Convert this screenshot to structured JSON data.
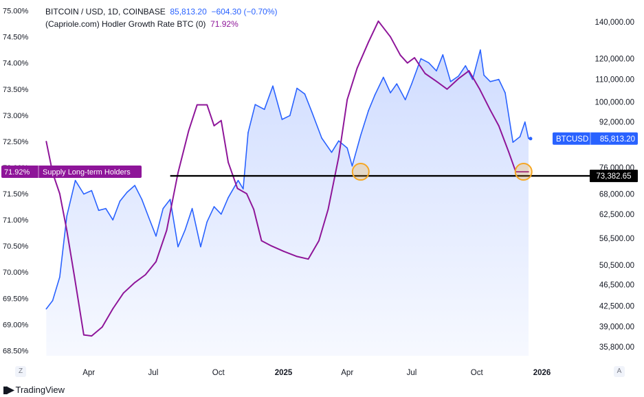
{
  "header": {
    "symbol": "BITCOIN / USD, 1D, COINBASE",
    "price": "85,813.20",
    "change": "−604.30 (−0.70%)",
    "indicator": "(Capriole.com) Hodler Growth Rate BTC (0)",
    "indicator_value": "71.92%"
  },
  "footer": {
    "brand": "TradingView"
  },
  "corner_buttons": {
    "left": "Z",
    "right": "A"
  },
  "chart_data": {
    "type": "line",
    "x_labels": [
      "Apr",
      "Jul",
      "Oct",
      "2025",
      "Apr",
      "Jul",
      "Oct",
      "2026"
    ],
    "left_axis": {
      "ticks": [
        "75.00%",
        "74.50%",
        "74.00%",
        "73.50%",
        "73.00%",
        "72.50%",
        "72.00%",
        "71.50%",
        "71.00%",
        "70.50%",
        "70.00%",
        "69.50%",
        "69.00%",
        "68.50%"
      ],
      "ylim": [
        68.4,
        75.1
      ]
    },
    "right_axis": {
      "scale": "log",
      "ticks": [
        "140,000.00",
        "120,000.00",
        "110,000.00",
        "100,000.00",
        "92,000.00",
        "76,000.00",
        "68,000.00",
        "62,500.00",
        "56,500.00",
        "50,500.00",
        "46,500.00",
        "42,500.00",
        "39,000.00",
        "35,800.00"
      ],
      "ylim": [
        34500,
        150000
      ]
    },
    "series": [
      {
        "name": "BTCUSD",
        "axis": "right",
        "color": "#2962ff",
        "x": [
          "2024-02-01",
          "2024-02-10",
          "2024-02-20",
          "2024-03-01",
          "2024-03-13",
          "2024-03-25",
          "2024-04-05",
          "2024-04-15",
          "2024-04-25",
          "2024-05-05",
          "2024-05-15",
          "2024-05-25",
          "2024-06-05",
          "2024-06-15",
          "2024-06-25",
          "2024-07-05",
          "2024-07-15",
          "2024-07-25",
          "2024-08-05",
          "2024-08-15",
          "2024-08-25",
          "2024-09-06",
          "2024-09-15",
          "2024-09-25",
          "2024-10-05",
          "2024-10-15",
          "2024-10-29",
          "2024-11-05",
          "2024-11-12",
          "2024-11-22",
          "2024-12-05",
          "2024-12-17",
          "2024-12-30",
          "2025-01-10",
          "2025-01-20",
          "2025-01-31",
          "2025-02-10",
          "2025-02-24",
          "2025-03-10",
          "2025-03-20",
          "2025-04-01",
          "2025-04-08",
          "2025-04-20",
          "2025-05-01",
          "2025-05-10",
          "2025-05-22",
          "2025-06-01",
          "2025-06-10",
          "2025-06-22",
          "2025-07-01",
          "2025-07-14",
          "2025-07-25",
          "2025-08-05",
          "2025-08-14",
          "2025-08-25",
          "2025-09-05",
          "2025-09-15",
          "2025-09-25",
          "2025-10-06",
          "2025-10-11",
          "2025-10-20",
          "2025-11-01",
          "2025-11-10",
          "2025-11-21",
          "2025-12-01",
          "2025-12-08",
          "2025-12-13"
        ],
        "values": [
          42000,
          43500,
          48000,
          62000,
          72000,
          68000,
          69000,
          63500,
          64000,
          61000,
          66000,
          68500,
          70500,
          66500,
          61500,
          57000,
          64000,
          66500,
          54500,
          58500,
          64000,
          54500,
          60500,
          64500,
          62500,
          67000,
          72000,
          69500,
          88000,
          99000,
          97000,
          107000,
          93000,
          94500,
          106000,
          103500,
          96000,
          86000,
          81000,
          85000,
          82500,
          76500,
          87000,
          96500,
          103000,
          111000,
          104000,
          108000,
          101000,
          108000,
          120000,
          118000,
          114000,
          122000,
          109000,
          111500,
          116500,
          110000,
          124500,
          112000,
          109000,
          110000,
          104000,
          84500,
          86500,
          92000,
          85813
        ]
      },
      {
        "name": "Supply Long-term Holders",
        "axis": "left",
        "color": "#8e1599",
        "x": [
          "2024-02-01",
          "2024-02-10",
          "2024-02-20",
          "2024-03-01",
          "2024-03-12",
          "2024-03-25",
          "2024-04-05",
          "2024-04-20",
          "2024-05-05",
          "2024-05-20",
          "2024-06-05",
          "2024-06-20",
          "2024-07-05",
          "2024-07-20",
          "2024-08-05",
          "2024-08-20",
          "2024-09-01",
          "2024-09-15",
          "2024-09-25",
          "2024-10-05",
          "2024-10-15",
          "2024-10-28",
          "2024-11-10",
          "2024-11-20",
          "2024-12-01",
          "2024-12-15",
          "2025-01-01",
          "2025-01-20",
          "2025-02-05",
          "2025-02-20",
          "2025-03-05",
          "2025-03-20",
          "2025-04-01",
          "2025-04-15",
          "2025-05-01",
          "2025-05-15",
          "2025-06-01",
          "2025-06-15",
          "2025-06-25",
          "2025-07-05",
          "2025-07-20",
          "2025-08-05",
          "2025-08-20",
          "2025-09-05",
          "2025-09-20",
          "2025-10-05",
          "2025-10-20",
          "2025-11-01",
          "2025-11-15",
          "2025-11-25",
          "2025-12-05",
          "2025-12-13"
        ],
        "values": [
          72.5,
          71.9,
          71.5,
          70.8,
          69.9,
          68.8,
          68.78,
          68.95,
          69.3,
          69.6,
          69.8,
          69.95,
          70.2,
          70.8,
          71.9,
          72.7,
          73.2,
          73.2,
          72.8,
          72.9,
          72.1,
          71.6,
          71.5,
          71.2,
          70.6,
          70.5,
          70.4,
          70.3,
          70.25,
          70.6,
          71.2,
          72.2,
          73.3,
          73.9,
          74.4,
          74.8,
          74.5,
          74.15,
          74.0,
          74.1,
          73.8,
          73.65,
          73.5,
          73.7,
          73.85,
          73.5,
          73.1,
          72.8,
          72.3,
          71.92,
          71.92,
          71.92
        ]
      }
    ],
    "horizontal_line": {
      "value": 73382.65,
      "label": "73,382.65"
    },
    "highlight_circles": [
      {
        "x": "2025-04-20",
        "value": 71.92
      },
      {
        "x": "2025-12-06",
        "value": 71.92
      }
    ],
    "value_labels": {
      "btc": {
        "name": "BTCUSD",
        "value": "85,813.20",
        "color": "#2962ff"
      },
      "lth": {
        "value": "71.92%",
        "name": "Supply Long-term Holders",
        "color": "#8e1599"
      }
    }
  }
}
